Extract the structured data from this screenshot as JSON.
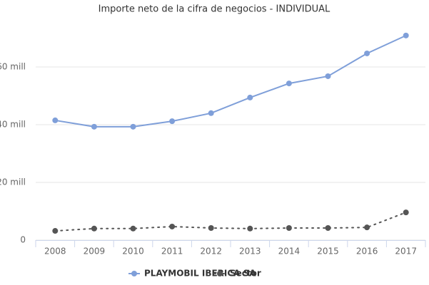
{
  "chart_data": {
    "type": "line",
    "title": "Importe neto de la cifra de negocios - INDIVIDUAL",
    "categories": [
      "2008",
      "2009",
      "2010",
      "2011",
      "2012",
      "2013",
      "2014",
      "2015",
      "2016",
      "2017"
    ],
    "series": [
      {
        "name": "PLAYMOBIL IBERICA SA",
        "color": "#7f9fd9",
        "dash": false,
        "values": [
          41.5,
          39.3,
          39.3,
          41.2,
          44.0,
          49.4,
          54.3,
          56.8,
          64.7,
          70.9
        ]
      },
      {
        "name": "Sector",
        "color": "#555555",
        "dash": true,
        "values": [
          3.2,
          4.0,
          4.0,
          4.7,
          4.2,
          4.0,
          4.2,
          4.2,
          4.4,
          9.6
        ]
      }
    ],
    "ylim": [
      0,
      75
    ],
    "yticks": [
      0,
      {
        "value": 20,
        "label": "20 mill"
      },
      {
        "value": 40,
        "label": "40 mill"
      },
      {
        "value": 60,
        "label": "60 mill"
      }
    ],
    "grid": true
  }
}
